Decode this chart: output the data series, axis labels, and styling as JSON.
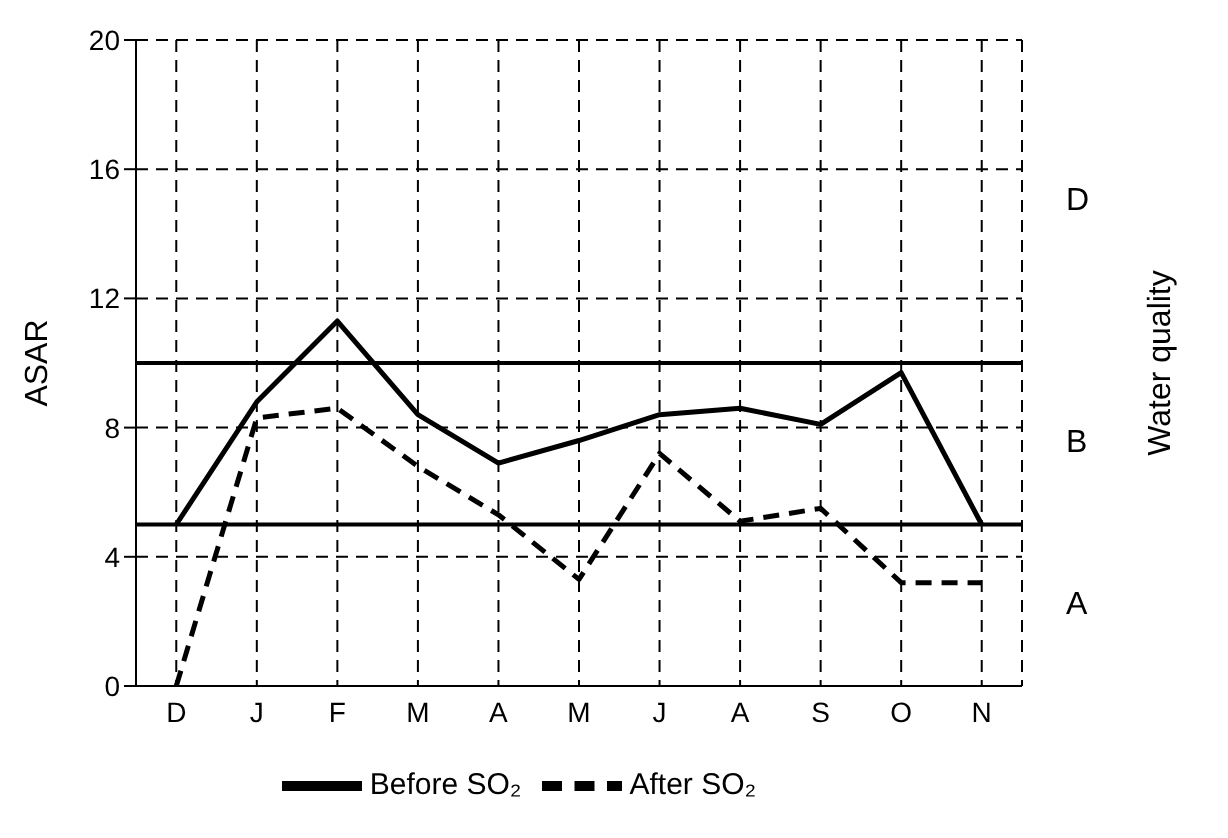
{
  "chart_data": {
    "type": "line",
    "categories": [
      "D",
      "J",
      "F",
      "M",
      "A",
      "M",
      "J",
      "A",
      "S",
      "O",
      "N"
    ],
    "ylabel": "ASAR",
    "y2label": "Water quality",
    "ylim": [
      0,
      20
    ],
    "yticks": [
      0,
      4,
      8,
      12,
      16,
      20
    ],
    "grid": true,
    "legend": "bottom",
    "marker": "none",
    "series": [
      {
        "name": "Before SO₂",
        "color": "#000000",
        "line_style": "solid",
        "values": [
          5,
          8.8,
          11.3,
          8.4,
          6.9,
          7.6,
          8.4,
          8.6,
          8.1,
          9.7,
          5
        ]
      },
      {
        "name": "After SO₂",
        "color": "#000000",
        "line_style": "dashed",
        "values": [
          0,
          8.3,
          8.6,
          6.8,
          5.3,
          3.3,
          7.2,
          5.1,
          5.5,
          3.2,
          3.2
        ]
      }
    ],
    "ref_lines": [
      {
        "axis": "y",
        "value": 10,
        "color": "#000000"
      },
      {
        "axis": "y",
        "value": 5,
        "color": "#000000"
      }
    ],
    "annotations": [
      "D",
      "B",
      "A"
    ]
  }
}
